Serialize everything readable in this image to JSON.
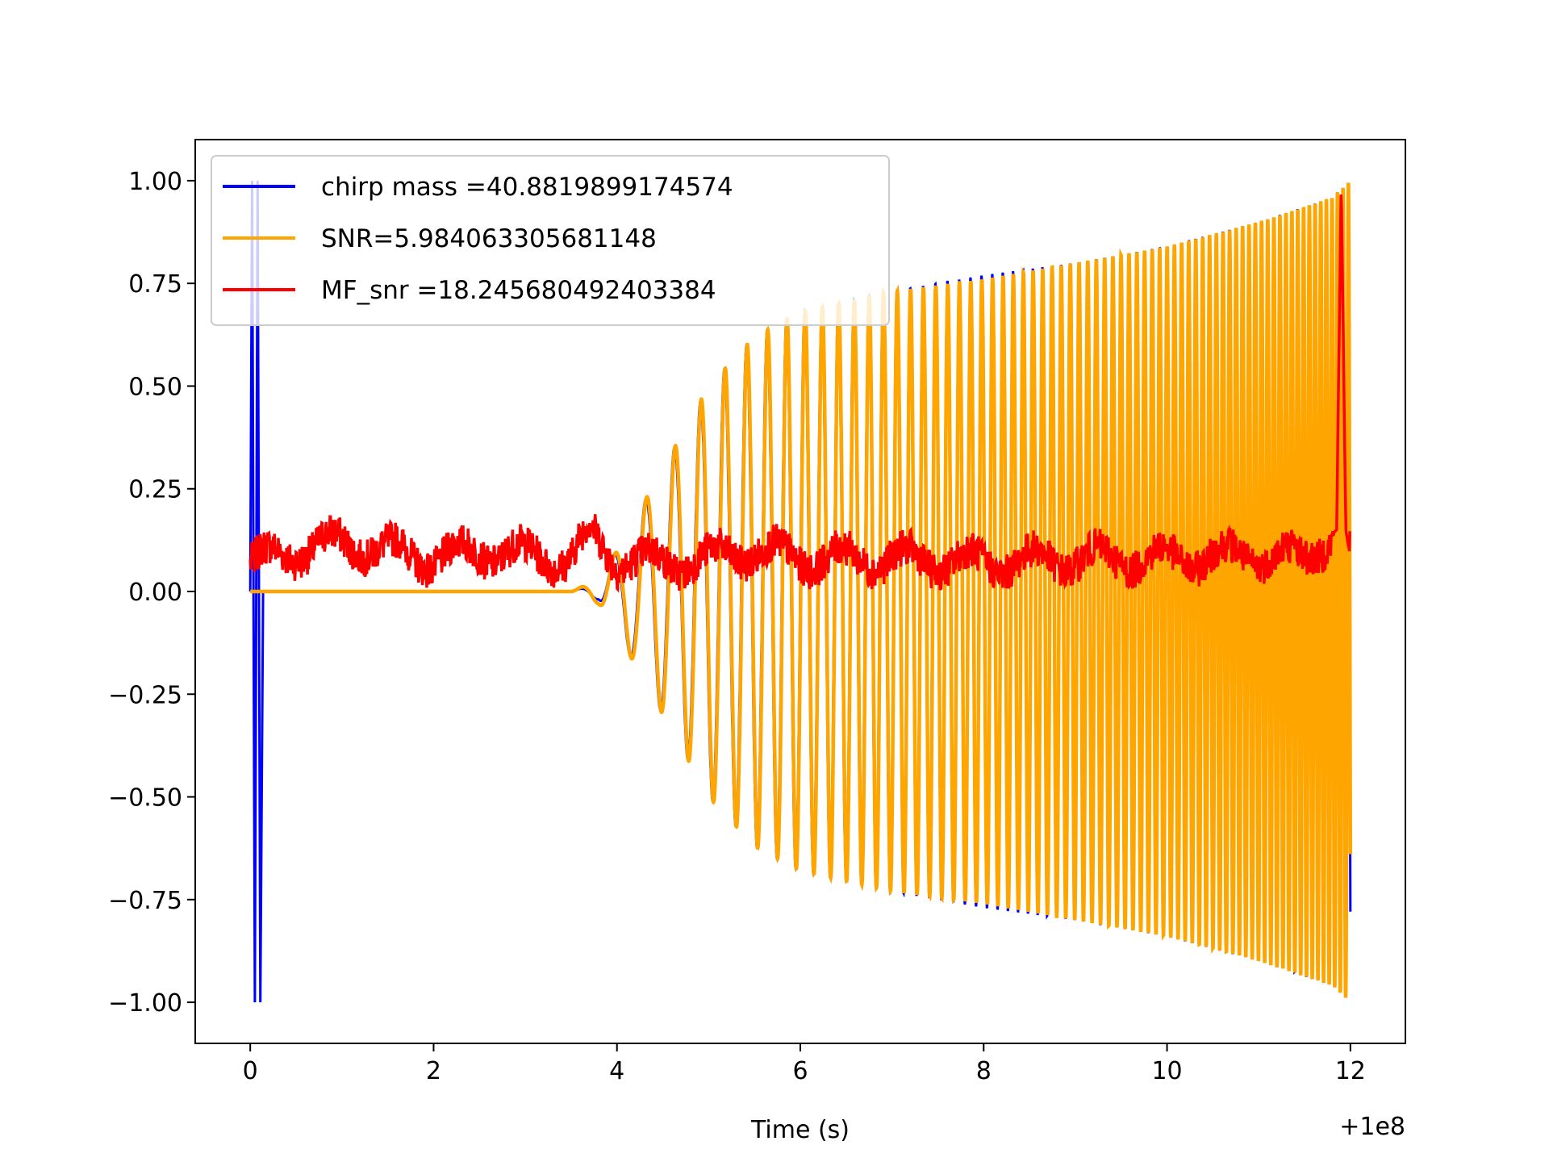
{
  "chart_data": {
    "type": "line",
    "title": "",
    "xlabel": "Time (s)",
    "ylabel": "",
    "x_offset_label": "+1e8",
    "xlim": [
      -0.6,
      12.6
    ],
    "ylim": [
      -1.1,
      1.1
    ],
    "x_ticks": [
      0,
      2,
      4,
      6,
      8,
      10,
      12
    ],
    "x_tick_labels": [
      "0",
      "2",
      "4",
      "6",
      "8",
      "10",
      "12"
    ],
    "y_ticks": [
      1.0,
      0.75,
      0.5,
      0.25,
      0.0,
      -0.25,
      -0.5,
      -0.75,
      -1.0
    ],
    "y_tick_labels": [
      "1.00",
      "0.75",
      "0.50",
      "0.25",
      "0.00",
      "−0.25",
      "−0.50",
      "−0.75",
      "−1.00"
    ],
    "grid": false,
    "legend_position": "top-left",
    "series": [
      {
        "name": "chirp mass =40.8819899174574",
        "color": "#0000ff",
        "description": "normalized chirp template; full-scale spikes near t=0, then chirp from ~3.5 s growing to amplitude 1.0 at ~12 s",
        "envelope": {
          "x": [
            0.0,
            0.15,
            3.5,
            3.8,
            4.0,
            4.5,
            5.0,
            5.5,
            6.0,
            7.0,
            8.0,
            9.0,
            10.0,
            11.0,
            11.8,
            12.0
          ],
          "amplitude": [
            1.0,
            1.0,
            0.0,
            0.02,
            0.1,
            0.3,
            0.5,
            0.62,
            0.68,
            0.73,
            0.77,
            0.8,
            0.84,
            0.9,
            0.96,
            1.0
          ]
        }
      },
      {
        "name": "SNR=5.984063305681148",
        "color": "#ffa500",
        "description": "noisy chirp signal, near zero until ~3.5 s, oscillation amplitude rising to ~1.0 at 12 s",
        "envelope": {
          "x": [
            0.0,
            3.5,
            3.8,
            4.0,
            4.5,
            5.0,
            5.5,
            6.0,
            7.0,
            8.0,
            9.0,
            10.0,
            11.0,
            11.8,
            12.0
          ],
          "amplitude": [
            0.0,
            0.0,
            0.03,
            0.1,
            0.3,
            0.5,
            0.62,
            0.68,
            0.73,
            0.76,
            0.8,
            0.84,
            0.9,
            0.96,
            1.0
          ]
        }
      },
      {
        "name": "MF_snr =18.245680492403384",
        "color": "#ff0000",
        "description": "matched-filter output, noisy band ~0.0–0.2, sharp peak of 1.0 at ~11.9 s",
        "x": [
          0.0,
          0.5,
          1.0,
          1.5,
          2.0,
          2.5,
          3.0,
          3.5,
          3.7,
          4.0,
          4.5,
          5.0,
          5.5,
          6.0,
          7.0,
          8.0,
          9.0,
          10.0,
          11.0,
          11.5,
          11.85,
          11.9,
          11.95,
          12.0
        ],
        "y": [
          0.07,
          0.1,
          0.12,
          0.1,
          0.08,
          0.1,
          0.09,
          0.08,
          0.14,
          0.08,
          0.07,
          0.08,
          0.1,
          0.08,
          0.08,
          0.07,
          0.08,
          0.08,
          0.09,
          0.08,
          0.15,
          1.0,
          0.15,
          0.08
        ]
      }
    ]
  }
}
